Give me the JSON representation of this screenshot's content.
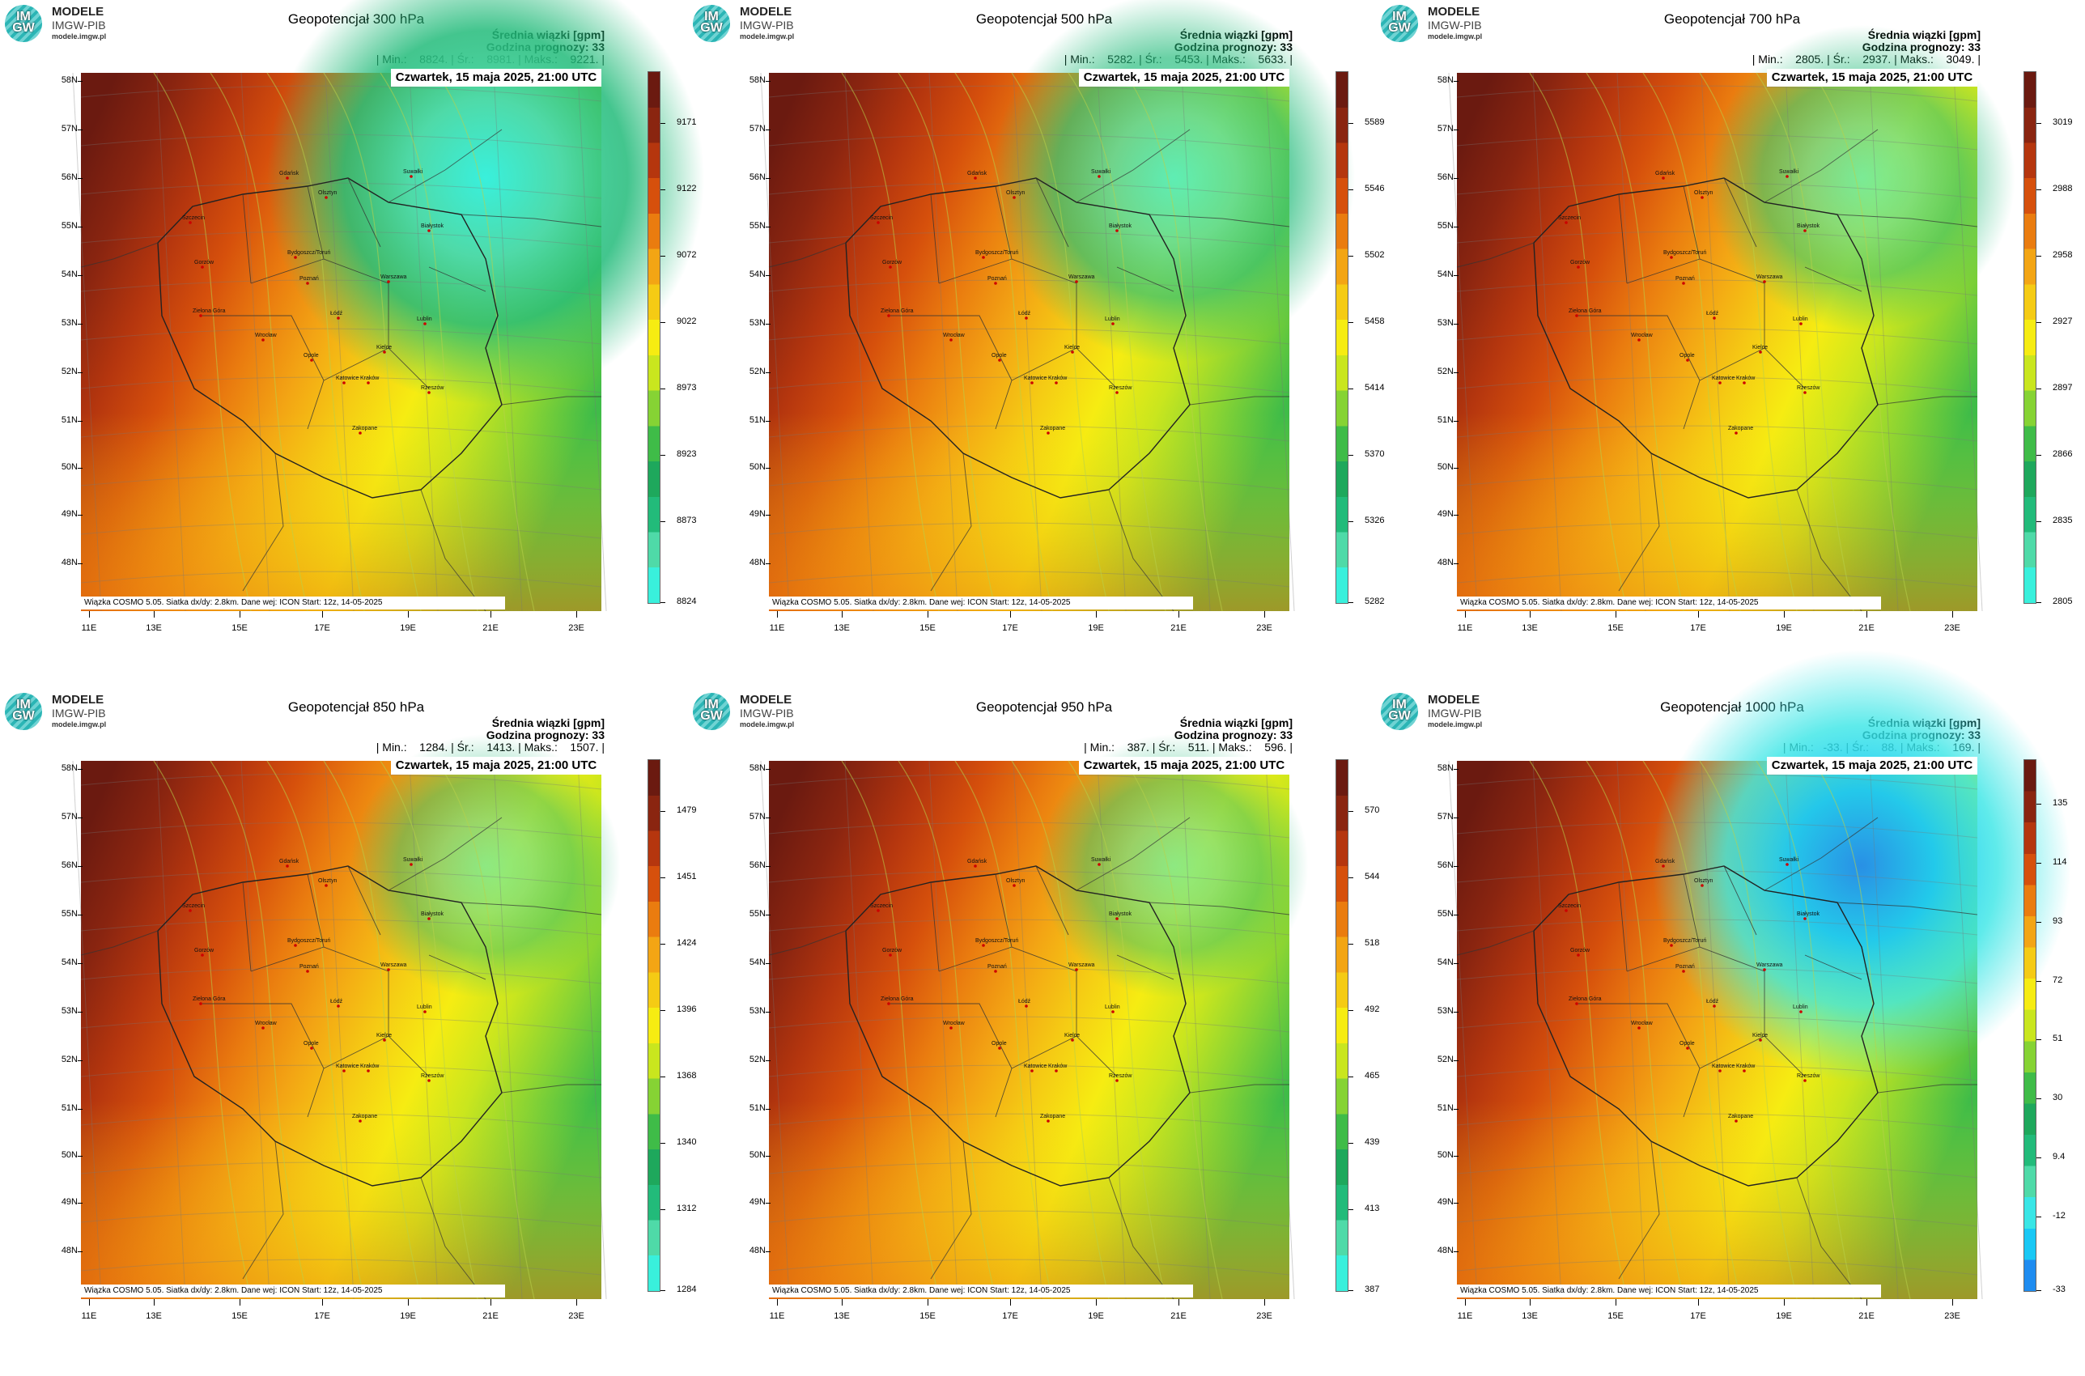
{
  "logo": {
    "abbr": "IM GW",
    "line1": "MODELE",
    "line2": "IMGW-PIB",
    "line3": "modele.imgw.pl"
  },
  "common": {
    "header_line1": "Średnia wiązki [gpm]",
    "header_line2": "Godzina prognozy: 33",
    "date": "Czwartek, 15 maja 2025, 21:00 UTC",
    "footnote": "Wiązka  COSMO  5.05.  Siatka  dx/dy:  2.8km.  Dane  wej:  ICON  Start:  12z,  14-05-2025",
    "lat_labels": [
      "58N",
      "57N",
      "56N",
      "55N",
      "54N",
      "53N",
      "52N",
      "51N",
      "50N",
      "49N",
      "48N"
    ],
    "lon_labels": [
      "11E",
      "13E",
      "15E",
      "17E",
      "19E",
      "21E",
      "23E"
    ]
  },
  "panels": [
    {
      "title": "Geopotencjał 300 hPa",
      "stats": "| Min.:    8824. | Śr.:    8981. | Maks.:    9221. |",
      "colorbar": [
        "9171",
        "9122",
        "9072",
        "9022",
        "8973",
        "8923",
        "8873",
        "8824"
      ],
      "scheme": "main",
      "low_strength": 1.0
    },
    {
      "title": "Geopotencjał 500 hPa",
      "stats": "| Min.:    5282. | Śr.:    5453. | Maks.:    5633. |",
      "colorbar": [
        "5589",
        "5546",
        "5502",
        "5458",
        "5414",
        "5370",
        "5326",
        "5282"
      ],
      "scheme": "main",
      "low_strength": 0.8
    },
    {
      "title": "Geopotencjał 700 hPa",
      "stats": "| Min.:    2805. | Śr.:    2937. | Maks.:    3049. |",
      "colorbar": [
        "3019",
        "2988",
        "2958",
        "2927",
        "2897",
        "2866",
        "2835",
        "2805"
      ],
      "scheme": "main",
      "low_strength": 0.65
    },
    {
      "title": "Geopotencjał 850 hPa",
      "stats": "| Min.:    1284. | Śr.:    1413. | Maks.:    1507. |",
      "colorbar": [
        "1479",
        "1451",
        "1424",
        "1396",
        "1368",
        "1340",
        "1312",
        "1284"
      ],
      "scheme": "main",
      "low_strength": 0.55
    },
    {
      "title": "Geopotencjał 950 hPa",
      "stats": "| Min.:    387. | Śr.:    511. | Maks.:    596. |",
      "colorbar": [
        "570",
        "544",
        "518",
        "492",
        "465",
        "439",
        "413",
        "387"
      ],
      "scheme": "main",
      "low_strength": 0.55
    },
    {
      "title": "Geopotencjał 1000 hPa",
      "stats": "| Min.:   -33. | Śr.:    88. | Maks.:    169. |",
      "colorbar": [
        "135",
        "114",
        "93",
        "72",
        "51",
        "30",
        "9.4",
        "-12",
        "-33"
      ],
      "scheme": "cyan",
      "low_strength": 0.95
    }
  ],
  "cities": [
    "Gdańsk",
    "Suwałki",
    "Olsztyn",
    "Białystok",
    "Szczecin",
    "Bydgoszcz/Toruń",
    "Gorzów",
    "Poznań",
    "Warszawa",
    "Zielona Góra",
    "Łódź",
    "Lublin",
    "Wrocław",
    "Kielce",
    "Opole",
    "Katowice",
    "Kraków",
    "Rzeszów",
    "Zakopane"
  ],
  "colors": {
    "main": [
      "#6b1a10",
      "#8a2510",
      "#b5360e",
      "#d6500c",
      "#ea7c0f",
      "#f3a514",
      "#f5cb14",
      "#f6ec12",
      "#c9e61e",
      "#86d334",
      "#3fbc48",
      "#1ea85c",
      "#22bb7a",
      "#4fdaa8",
      "#39f0dc"
    ],
    "cyan": [
      "#6b1a10",
      "#8a2510",
      "#b5360e",
      "#d6500c",
      "#ea7c0f",
      "#f3a514",
      "#f5cb14",
      "#f6ec12",
      "#c9e61e",
      "#86d334",
      "#3fbc48",
      "#1ea85c",
      "#22bb7a",
      "#4fdaa8",
      "#39e6e6",
      "#19c8f5",
      "#1e8cf0"
    ]
  }
}
